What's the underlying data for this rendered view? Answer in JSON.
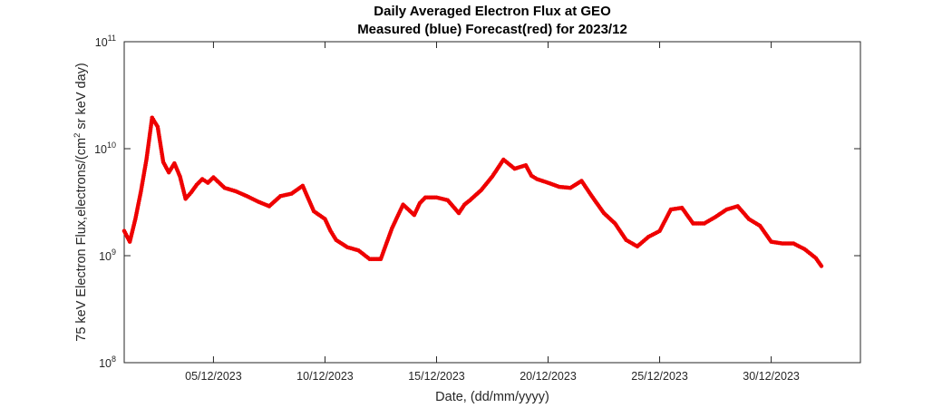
{
  "chart_data": {
    "type": "scatter",
    "title": "Daily Averaged Electron Flux at GEO",
    "subtitle": "Measured (blue) Forecast(red) for 2023/12",
    "xlabel": "Date, (dd/mm/yyyy)",
    "ylabel_parts": {
      "before": "75 keV Electron Flux,electrons/(cm",
      "superscript": "2",
      "after": " sr keV day)"
    },
    "ylabel": "75 keV Electron Flux,electrons/(cm2 sr keV day)",
    "y_scale": "log",
    "ylim": [
      100000000,
      100000000000
    ],
    "xlim": [
      1.0,
      34.0
    ],
    "y_ticks": [
      {
        "base": "10",
        "exp": "8",
        "value": 100000000
      },
      {
        "base": "10",
        "exp": "9",
        "value": 1000000000
      },
      {
        "base": "10",
        "exp": "10",
        "value": 10000000000
      },
      {
        "base": "10",
        "exp": "11",
        "value": 100000000000
      }
    ],
    "x_ticks": [
      {
        "label": "05/12/2023",
        "day": 5
      },
      {
        "label": "10/12/2023",
        "day": 10
      },
      {
        "label": "15/12/2023",
        "day": 15
      },
      {
        "label": "20/12/2023",
        "day": 20
      },
      {
        "label": "25/12/2023",
        "day": 25
      },
      {
        "label": "30/12/2023",
        "day": 30
      }
    ],
    "grid": false,
    "series": [
      {
        "color": "#ee0000",
        "x": [
          1.0,
          1.25,
          1.5,
          1.75,
          2.0,
          2.25,
          2.5,
          2.75,
          3.0,
          3.25,
          3.5,
          3.75,
          4.0,
          4.25,
          4.5,
          4.75,
          5.0,
          5.5,
          6.0,
          6.5,
          7.0,
          7.5,
          8.0,
          8.5,
          9.0,
          9.5,
          10.0,
          10.25,
          10.5,
          11.0,
          11.5,
          12.0,
          12.5,
          13.0,
          13.5,
          14.0,
          14.25,
          14.5,
          15.0,
          15.5,
          16.0,
          16.25,
          16.5,
          17.0,
          17.5,
          18.0,
          18.5,
          19.0,
          19.25,
          19.5,
          20.0,
          20.5,
          21.0,
          21.5,
          22.0,
          22.5,
          23.0,
          23.5,
          24.0,
          24.5,
          25.0,
          25.5,
          26.0,
          26.5,
          27.0,
          27.5,
          28.0,
          28.5,
          29.0,
          29.5,
          30.0,
          30.5,
          31.0,
          31.5,
          32.0,
          32.25
        ],
        "y": [
          1700000000,
          1350000000,
          2200000000,
          4000000000,
          8000000000,
          19500000000,
          16000000000,
          7500000000,
          6000000000,
          7300000000,
          5500000000,
          3400000000,
          3900000000,
          4600000000,
          5200000000,
          4800000000,
          5400000000,
          4300000000,
          4000000000,
          3600000000,
          3200000000,
          2900000000,
          3600000000,
          3800000000,
          4500000000,
          2600000000,
          2200000000,
          1700000000,
          1400000000,
          1200000000,
          1120000000,
          930000000,
          930000000,
          1800000000,
          3000000000,
          2400000000,
          3100000000,
          3500000000,
          3500000000,
          3300000000,
          2500000000,
          3000000000,
          3300000000,
          4100000000,
          5500000000,
          7900000000,
          6500000000,
          7000000000,
          5600000000,
          5200000000,
          4800000000,
          4400000000,
          4300000000,
          5000000000,
          3500000000,
          2500000000,
          2000000000,
          1400000000,
          1220000000,
          1500000000,
          1700000000,
          2700000000,
          2800000000,
          2000000000,
          2000000000,
          2300000000,
          2700000000,
          2900000000,
          2200000000,
          1900000000,
          1350000000,
          1300000000,
          1300000000,
          1150000000,
          950000000,
          800000000
        ]
      }
    ]
  }
}
